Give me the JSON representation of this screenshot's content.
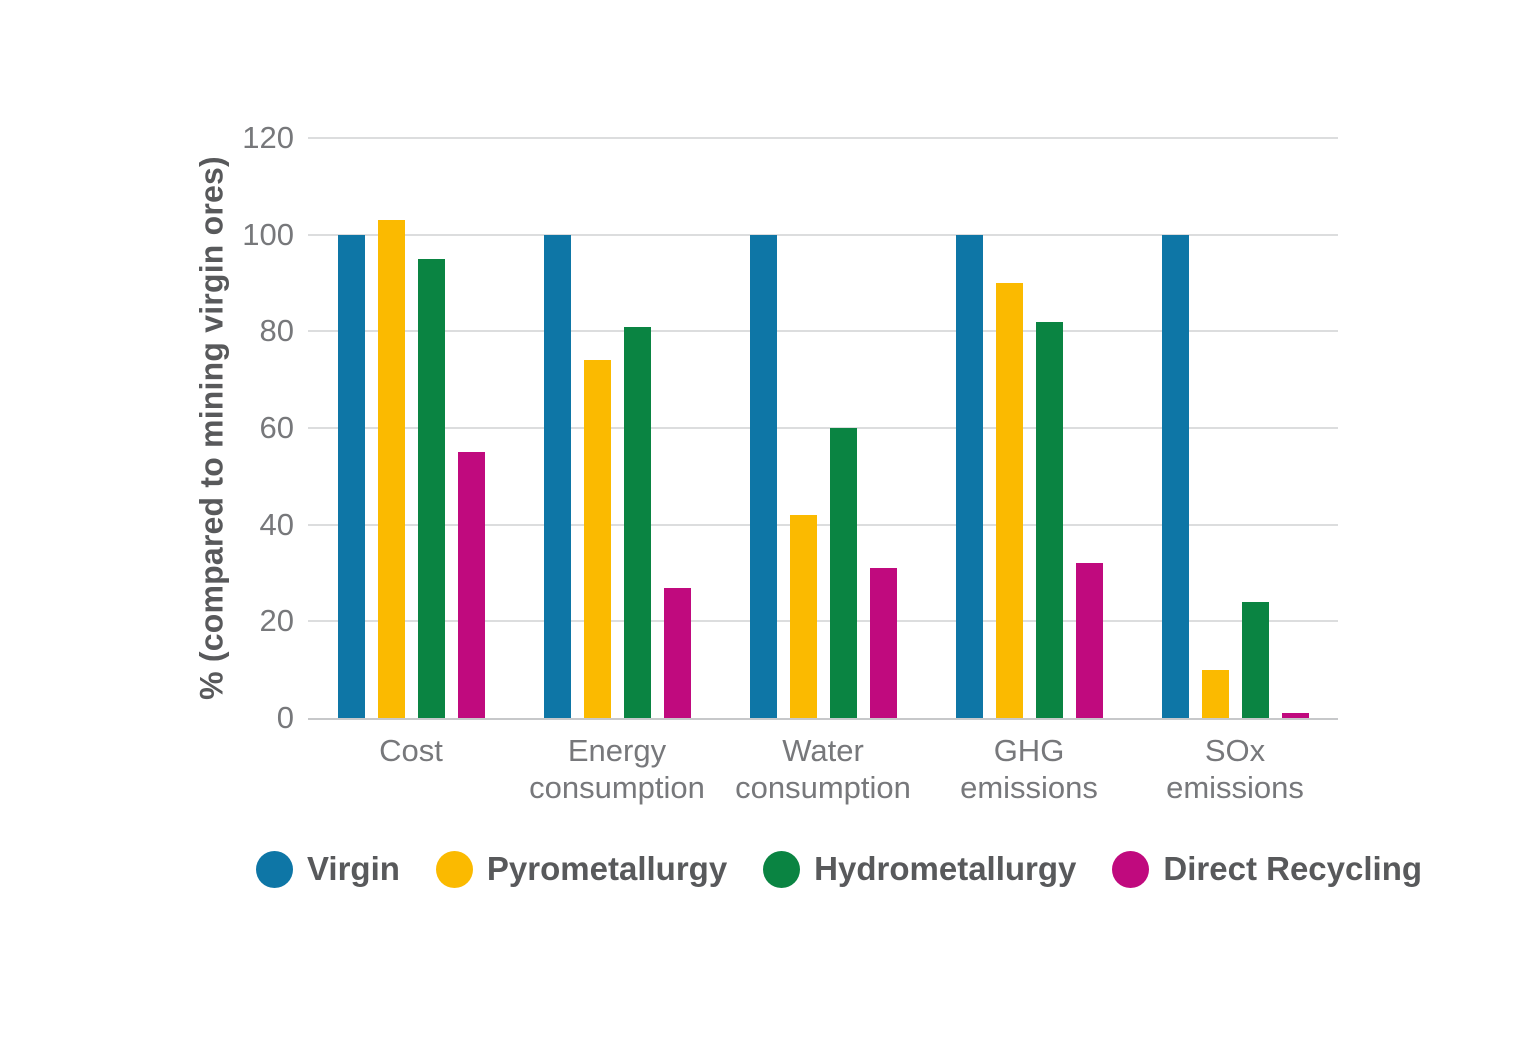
{
  "chart_data": {
    "type": "bar",
    "title": "",
    "ylabel": "% (compared to mining virgin ores)",
    "xlabel": "",
    "ylim": [
      0,
      120
    ],
    "yticks": [
      0,
      20,
      40,
      60,
      80,
      100,
      120
    ],
    "grid": true,
    "legend_position": "bottom",
    "background_color": "#ffffff",
    "gridline_color": "#dcddde",
    "axis_text_color": "#77787b",
    "legend_text_color": "#58595b",
    "categories": [
      "Cost",
      "Energy consumption",
      "Water consumption",
      "GHG emissions",
      "SOx emissions"
    ],
    "series": [
      {
        "name": "Virgin",
        "color": "#0E76A6",
        "values": [
          100,
          100,
          100,
          100,
          100
        ]
      },
      {
        "name": "Pyrometallurgy",
        "color": "#FBBA00",
        "values": [
          103,
          74,
          42,
          90,
          10
        ]
      },
      {
        "name": "Hydrometallurgy",
        "color": "#0A8442",
        "values": [
          95,
          81,
          60,
          82,
          24
        ]
      },
      {
        "name": "Direct Recycling",
        "color": "#C00A7E",
        "values": [
          55,
          27,
          31,
          32,
          1
        ]
      }
    ]
  }
}
